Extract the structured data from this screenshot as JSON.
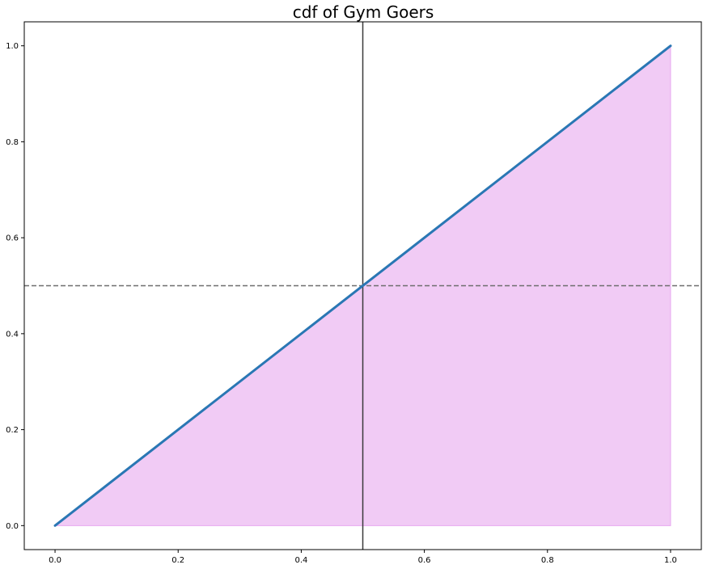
{
  "chart_data": {
    "type": "line",
    "title": "cdf of Gym Goers",
    "xlabel": "",
    "ylabel": "",
    "xlim": [
      -0.05,
      1.05
    ],
    "ylim": [
      -0.05,
      1.05
    ],
    "x_ticks": [
      0.0,
      0.2,
      0.4,
      0.6,
      0.8,
      1.0
    ],
    "x_tick_labels": [
      "0.0",
      "0.2",
      "0.4",
      "0.6",
      "0.8",
      "1.0"
    ],
    "y_ticks": [
      0.0,
      0.2,
      0.4,
      0.6,
      0.8,
      1.0
    ],
    "y_tick_labels": [
      "0.0",
      "0.2",
      "0.4",
      "0.6",
      "0.8",
      "1.0"
    ],
    "grid": false,
    "series": [
      {
        "x": [
          0.0,
          1.0
        ],
        "y": [
          0.0,
          1.0
        ],
        "color": "#2a77b4"
      }
    ],
    "fill_region": {
      "x": [
        0.0,
        1.0
      ],
      "y_lower": 0.0,
      "y_upper": [
        0.0,
        1.0
      ],
      "color": "#e7a8ef"
    },
    "reference_lines": [
      {
        "orientation": "vertical",
        "value": 0.5,
        "style": "solid",
        "color": "#3a3a3a"
      },
      {
        "orientation": "horizontal",
        "value": 0.5,
        "style": "dashed",
        "color": "#6e6e6e"
      }
    ]
  }
}
